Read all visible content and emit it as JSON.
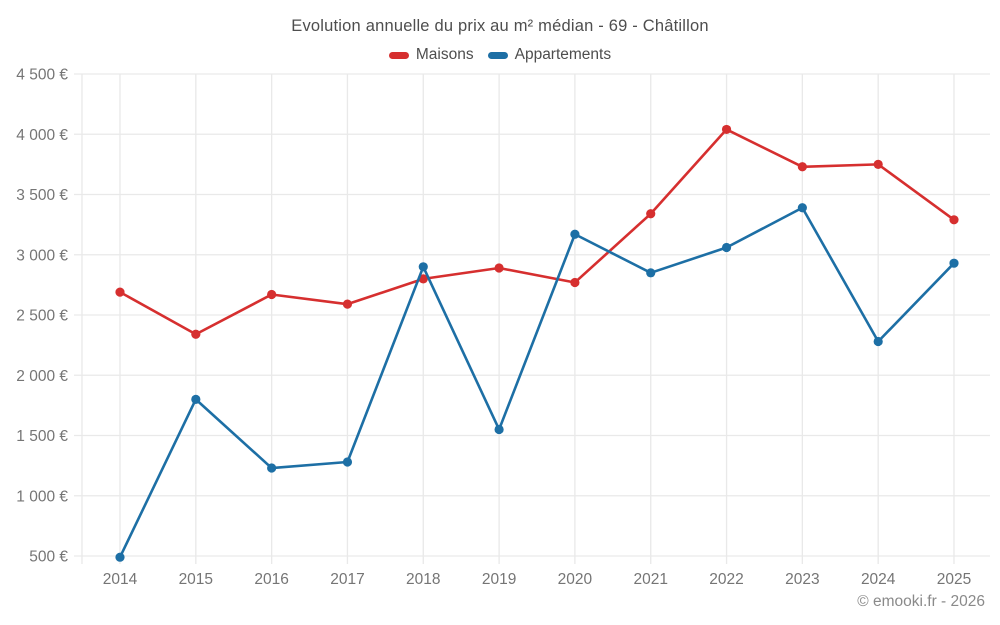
{
  "chart_data": {
    "type": "line",
    "title": "Evolution annuelle du prix au m² médian - 69 - Châtillon",
    "x": [
      "2014",
      "2015",
      "2016",
      "2017",
      "2018",
      "2019",
      "2020",
      "2021",
      "2022",
      "2023",
      "2024",
      "2025"
    ],
    "series": [
      {
        "name": "Maisons",
        "color": "#d62f2f",
        "values": [
          2690,
          2340,
          2670,
          2590,
          2800,
          2890,
          2770,
          3340,
          4040,
          3730,
          3750,
          3290
        ]
      },
      {
        "name": "Appartements",
        "color": "#1d6fa5",
        "values": [
          490,
          1800,
          1230,
          1280,
          2900,
          1550,
          3170,
          2850,
          3060,
          3390,
          2280,
          2930
        ]
      }
    ],
    "ylim": [
      500,
      4500
    ],
    "ytick_step": 500,
    "ytick_labels": [
      "500 €",
      "1 000 €",
      "1 500 €",
      "2 000 €",
      "2 500 €",
      "3 000 €",
      "3 500 €",
      "4 000 €",
      "4 500 €"
    ],
    "xlabel": "",
    "ylabel": "",
    "grid": true,
    "legend_position": "top-center"
  },
  "footer": {
    "text": "© emooki.fr - 2026"
  },
  "colors": {
    "grid": "#e9e9e9",
    "tick_text": "#757575",
    "title_text": "#4e4e4e",
    "footer_text": "#8a8a8a"
  }
}
